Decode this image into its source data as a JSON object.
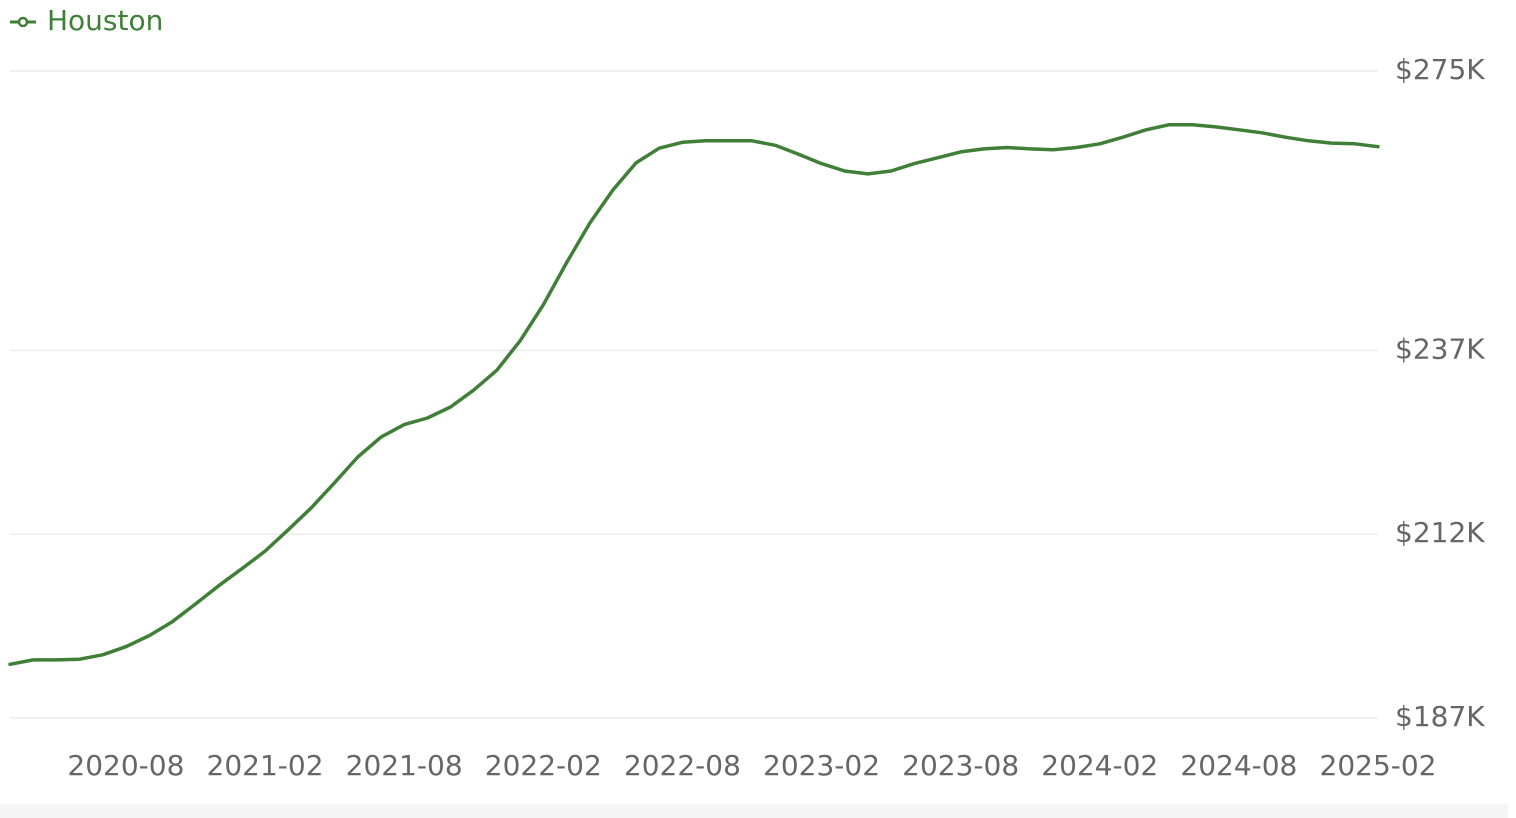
{
  "chart_data": {
    "type": "line",
    "categories": [
      null,
      null,
      null,
      null,
      null,
      "2020-08",
      null,
      null,
      null,
      null,
      null,
      "2021-02",
      null,
      null,
      null,
      null,
      null,
      "2021-08",
      null,
      null,
      null,
      null,
      null,
      "2022-02",
      null,
      null,
      null,
      null,
      null,
      "2022-08",
      null,
      null,
      null,
      null,
      null,
      "2023-02",
      null,
      null,
      null,
      null,
      null,
      "2023-08",
      null,
      null,
      null,
      null,
      null,
      "2024-02",
      null,
      null,
      null,
      null,
      null,
      "2024-08",
      null,
      null,
      null,
      null,
      null,
      "2025-02"
    ],
    "series": [
      {
        "name": "Houston",
        "color": "#3f7f37",
        "values": [
          194300,
          194900,
          194900,
          195000,
          195600,
          196700,
          198200,
          200100,
          202500,
          205000,
          207300,
          209700,
          212600,
          215600,
          219000,
          222500,
          225200,
          226900,
          227800,
          229300,
          231600,
          234300,
          238300,
          243200,
          248900,
          254300,
          258800,
          262500,
          264500,
          265300,
          265500,
          265500,
          265500,
          264900,
          263700,
          262400,
          261400,
          261000,
          261400,
          262400,
          263200,
          264000,
          264400,
          264600,
          264400,
          264300,
          264600,
          265100,
          266000,
          267000,
          267700,
          267700,
          267400,
          267000,
          266600,
          266000,
          265500,
          265200,
          265100,
          264700
        ]
      }
    ],
    "ylim": [
      187000,
      275000
    ],
    "yticks": [
      {
        "value": 187000,
        "label": "$187K"
      },
      {
        "value": 212000,
        "label": "$212K"
      },
      {
        "value": 237000,
        "label": "$237K"
      },
      {
        "value": 275000,
        "label": "$275K"
      }
    ],
    "grid": true,
    "legend": "top-left"
  }
}
